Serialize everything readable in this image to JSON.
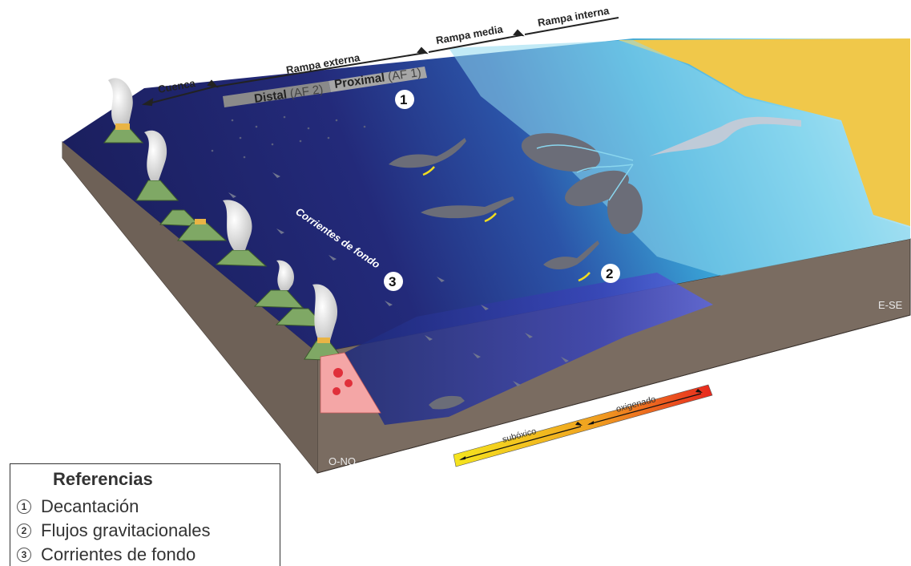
{
  "zones": {
    "cuenca": "Cuenca",
    "rampa_externa": "Rampa externa",
    "rampa_media": "Rampa media",
    "rampa_interna": "Rampa interna"
  },
  "subzones": {
    "distal": "Distal",
    "distal_af": "(AF 2)",
    "proximal": "Proximal",
    "proximal_af": "(AF 1)"
  },
  "process_markers": {
    "m1": "1",
    "m2": "2",
    "m3": "3"
  },
  "currents_label": "Corrientes de fondo",
  "orientation": {
    "west": "O-NO",
    "east": "E-SE"
  },
  "oxygen_gradient": {
    "suboxic": "subóxico",
    "oxygenated": "oxigenado",
    "colors": [
      "#f5e51e",
      "#f08a20",
      "#e8281e"
    ]
  },
  "legend": {
    "title": "Referencias",
    "items": [
      {
        "num": "1",
        "label": "Decantación"
      },
      {
        "num": "2",
        "label": "Flujos gravitacionales"
      },
      {
        "num": "3",
        "label": "Corrientes de fondo"
      }
    ]
  },
  "colors": {
    "deep_water": "#1b1f5e",
    "shallow_water": "#6fd0ea",
    "beach": "#f0c84a",
    "sediment": "#7b6d63",
    "volcano": "#7fa865",
    "plume": "#d8d8d8",
    "intrusion": "#f4a6a6"
  }
}
